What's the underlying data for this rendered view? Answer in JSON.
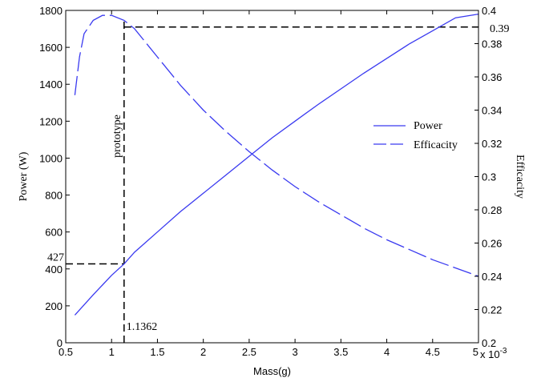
{
  "chart_data": {
    "type": "line",
    "x_label": "Mass(g)",
    "x_scale_note": "x 10",
    "x_scale_exp": "-3",
    "y_left_label": "Power (W)",
    "y_right_label": "Efficacity",
    "x_range": [
      0.5,
      5
    ],
    "y_left_range": [
      0,
      1800
    ],
    "y_right_range": [
      0.2,
      0.4
    ],
    "x_ticks": [
      "0.5",
      "1",
      "1.5",
      "2",
      "2.5",
      "3",
      "3.5",
      "4",
      "4.5",
      "5"
    ],
    "y_left_ticks": [
      "0",
      "200",
      "400",
      "600",
      "800",
      "1000",
      "1200",
      "1400",
      "1600",
      "1800"
    ],
    "y_right_ticks": [
      "0.2",
      "0.22",
      "0.24",
      "0.26",
      "0.28",
      "0.3",
      "0.32",
      "0.34",
      "0.36",
      "0.38",
      "0.4"
    ],
    "series": [
      {
        "name": "Power",
        "axis": "left",
        "style": "solid",
        "color": "#3a3af0",
        "x": [
          0.6,
          0.8,
          1.0,
          1.1362,
          1.25,
          1.5,
          1.75,
          2.0,
          2.25,
          2.5,
          2.75,
          3.0,
          3.25,
          3.5,
          3.75,
          4.0,
          4.25,
          4.5,
          4.75,
          5.0
        ],
        "y": [
          150,
          260,
          365,
          427,
          490,
          600,
          710,
          810,
          910,
          1010,
          1110,
          1200,
          1290,
          1375,
          1460,
          1540,
          1620,
          1690,
          1760,
          1780
        ]
      },
      {
        "name": "Efficacity",
        "axis": "right",
        "style": "dashed",
        "color": "#3a3af0",
        "x": [
          0.6,
          0.65,
          0.7,
          0.8,
          0.9,
          1.0,
          1.1362,
          1.25,
          1.5,
          1.75,
          2.0,
          2.25,
          2.5,
          2.75,
          3.0,
          3.25,
          3.5,
          3.75,
          4.0,
          4.25,
          4.5,
          4.75,
          5.0
        ],
        "y": [
          0.349,
          0.372,
          0.386,
          0.394,
          0.397,
          0.397,
          0.394,
          0.389,
          0.372,
          0.355,
          0.34,
          0.327,
          0.315,
          0.304,
          0.294,
          0.285,
          0.277,
          0.269,
          0.262,
          0.256,
          0.25,
          0.245,
          0.24
        ]
      }
    ],
    "legend": {
      "placement": "right-middle",
      "items": [
        "Power",
        "Efficacity"
      ]
    },
    "annotations": {
      "prototype_label": "prototype",
      "mass_label": "1.1362",
      "power_label": "427",
      "eff_label": "0.39",
      "mass_value": 1.1362,
      "power_value": 427,
      "eff_value": 0.39
    }
  }
}
